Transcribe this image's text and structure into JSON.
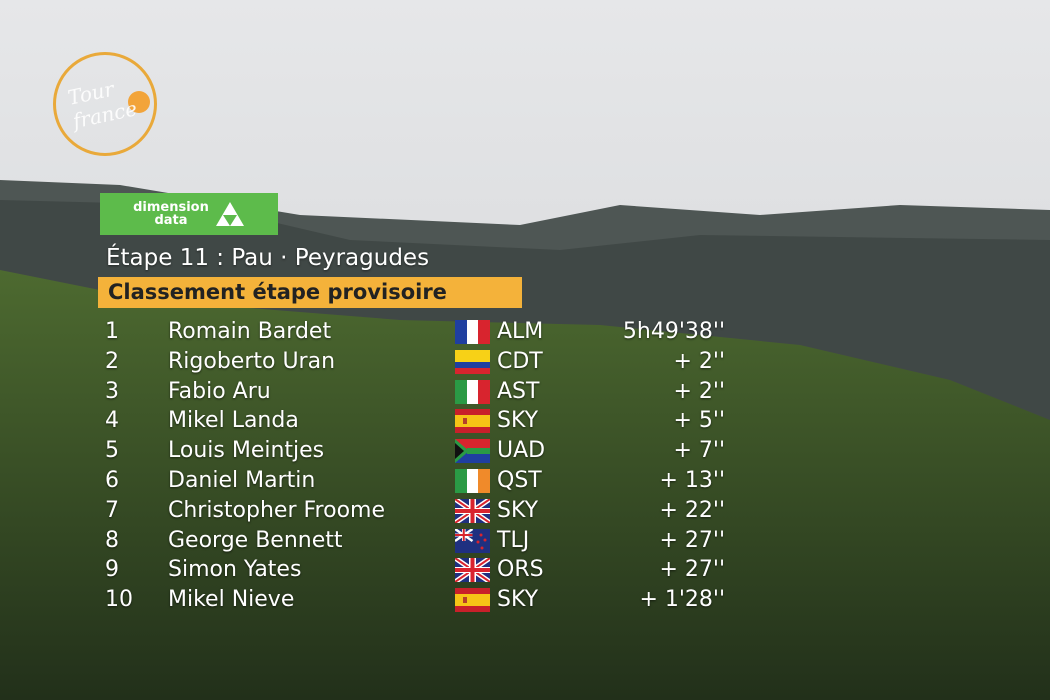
{
  "logo": {
    "text": "Tour de France"
  },
  "sponsor": {
    "line1": "dimension",
    "line2": "data"
  },
  "stage_title": "Étape 11 : Pau · Peyragudes",
  "classification_title": "Classement étape provisoire",
  "colors": {
    "banner": "#f4b23a",
    "sponsor": "#5dbb4b",
    "logo_ring": "#e9a93a"
  },
  "rows": [
    {
      "rank": "1",
      "name": "Romain Bardet",
      "flag": "fr",
      "team": "ALM",
      "time": "5h49'38''"
    },
    {
      "rank": "2",
      "name": "Rigoberto Uran",
      "flag": "co",
      "team": "CDT",
      "time": "+ 2''"
    },
    {
      "rank": "3",
      "name": "Fabio Aru",
      "flag": "it",
      "team": "AST",
      "time": "+ 2''"
    },
    {
      "rank": "4",
      "name": "Mikel Landa",
      "flag": "es",
      "team": "SKY",
      "time": "+ 5''"
    },
    {
      "rank": "5",
      "name": "Louis Meintjes",
      "flag": "za",
      "team": "UAD",
      "time": "+ 7''"
    },
    {
      "rank": "6",
      "name": "Daniel Martin",
      "flag": "ie",
      "team": "QST",
      "time": "+ 13''"
    },
    {
      "rank": "7",
      "name": "Christopher Froome",
      "flag": "gb",
      "team": "SKY",
      "time": "+ 22''"
    },
    {
      "rank": "8",
      "name": "George Bennett",
      "flag": "nz",
      "team": "TLJ",
      "time": "+ 27''"
    },
    {
      "rank": "9",
      "name": "Simon Yates",
      "flag": "gb",
      "team": "ORS",
      "time": "+ 27''"
    },
    {
      "rank": "10",
      "name": "Mikel Nieve",
      "flag": "es",
      "team": "SKY",
      "time": "+ 1'28''"
    }
  ]
}
